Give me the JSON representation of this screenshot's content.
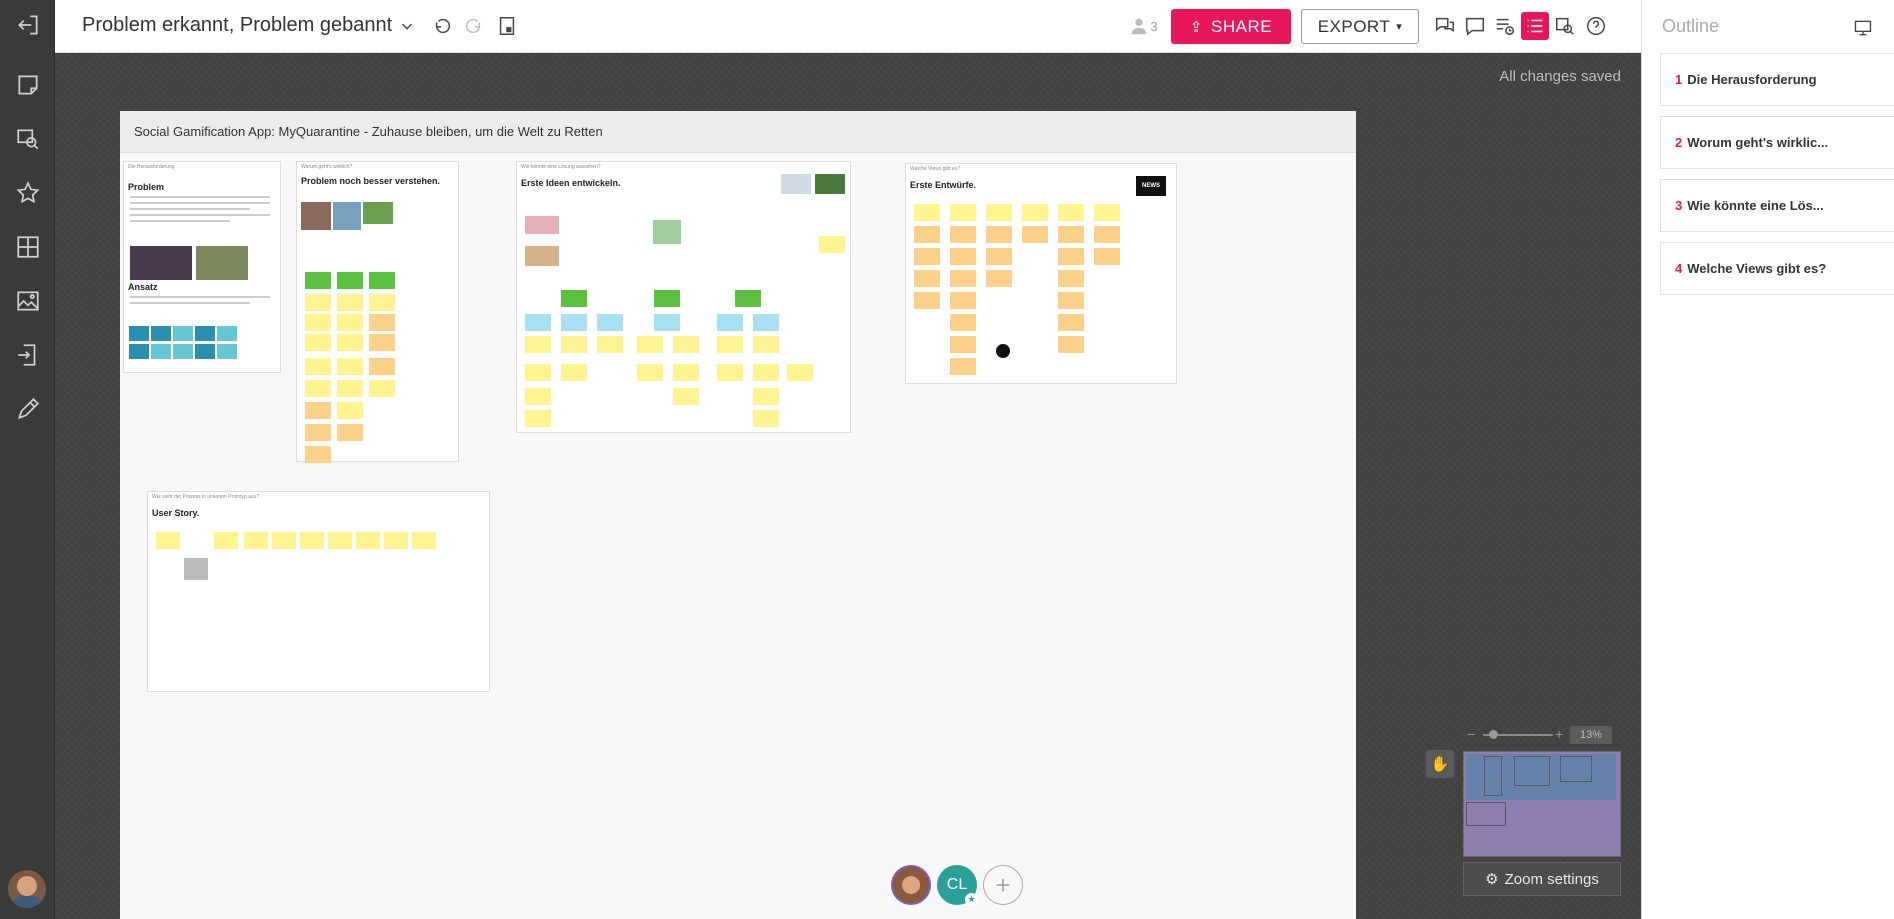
{
  "header": {
    "title": "Problem erkannt, Problem gebannt",
    "user_count": "3",
    "share_label": "SHARE",
    "export_label": "EXPORT"
  },
  "canvas": {
    "save_status": "All changes saved",
    "board_title": "Social Gamification App: MyQuarantine - Zuhause bleiben, um die Welt zu Retten",
    "frames": [
      {
        "header": "Die Herausforderung",
        "title": "Problem",
        "subtitle": "Ansatz"
      },
      {
        "header": "Worum geht's wirklich?",
        "title": "Problem noch besser verstehen."
      },
      {
        "header": "Wie könnte eine Lösung aussehen?",
        "title": "Erste Ideen entwickeln."
      },
      {
        "header": "Welche Views gibt es?",
        "title": "Erste Entwürfe.",
        "news_label": "NEWS"
      },
      {
        "header": "Wie sieht der Prozess in unserem Prototyp aus?",
        "title": "User Story."
      }
    ],
    "zoom_level": "13%",
    "zoom_settings_label": "Zoom settings",
    "collaborators": [
      {
        "initials": "CL",
        "color": "#2aa198"
      }
    ]
  },
  "outline": {
    "title": "Outline",
    "items": [
      {
        "num": "1",
        "label": "Die Herausforderung"
      },
      {
        "num": "2",
        "label": "Worum geht's wirklic..."
      },
      {
        "num": "3",
        "label": "Wie könnte eine Lös..."
      },
      {
        "num": "4",
        "label": "Welche Views gibt es?"
      }
    ]
  }
}
